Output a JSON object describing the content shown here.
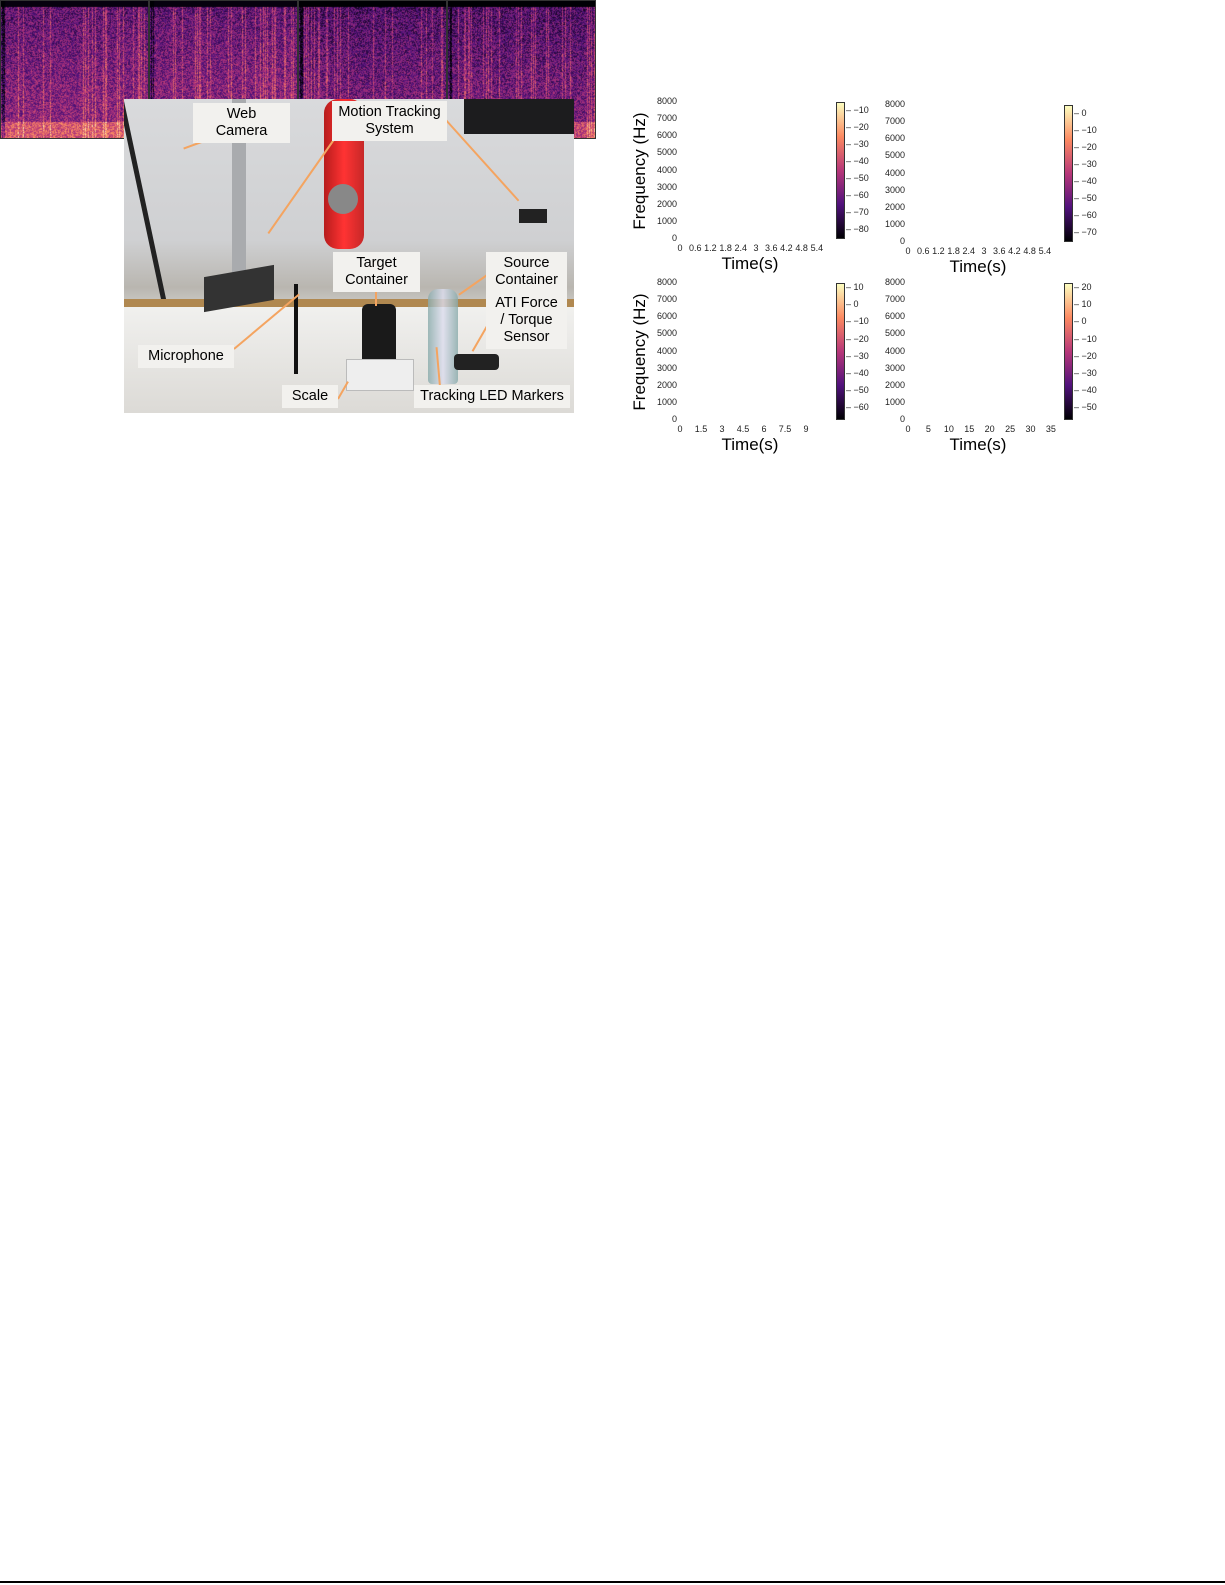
{
  "photo": {
    "labels": [
      {
        "id": "web-camera",
        "text": "Web Camera"
      },
      {
        "id": "motion-tracking",
        "text": "Motion Tracking System"
      },
      {
        "id": "target-container",
        "text": "Target Container"
      },
      {
        "id": "source-container",
        "text": "Source Container"
      },
      {
        "id": "ati-sensor",
        "text": "ATI Force / Torque Sensor"
      },
      {
        "id": "microphone",
        "text": "Microphone"
      },
      {
        "id": "scale",
        "text": "Scale"
      },
      {
        "id": "led-markers",
        "text": "Tracking LED Markers"
      }
    ],
    "arrow_color": "#f4a460"
  },
  "chart_data": [
    {
      "type": "heatmap",
      "colormap": "magma",
      "xlabel": "Time(s)",
      "ylabel": "Frequency (Hz)",
      "xticks": [
        "0",
        "0.6",
        "1.2",
        "1.8",
        "2.4",
        "3",
        "3.6",
        "4.2",
        "4.8",
        "5.4"
      ],
      "xlim": [
        0,
        5.8
      ],
      "yticks": [
        "0",
        "1000",
        "2000",
        "3000",
        "4000",
        "5000",
        "6000",
        "7000",
        "8000"
      ],
      "ylim": [
        0,
        8000
      ],
      "colorbar_ticks": [
        "−10",
        "−20",
        "−30",
        "−40",
        "−50",
        "−60",
        "−70",
        "−80"
      ],
      "colorbar_range": [
        -85,
        -5
      ]
    },
    {
      "type": "heatmap",
      "colormap": "magma",
      "xlabel": "Time(s)",
      "ylabel": "",
      "xticks": [
        "0",
        "0.6",
        "1.2",
        "1.8",
        "2.4",
        "3",
        "3.6",
        "4.2",
        "4.8",
        "5.4"
      ],
      "xlim": [
        0,
        5.8
      ],
      "yticks": [
        "0",
        "1000",
        "2000",
        "3000",
        "4000",
        "5000",
        "6000",
        "7000",
        "8000"
      ],
      "ylim": [
        0,
        8000
      ],
      "colorbar_ticks": [
        "0",
        "−10",
        "−20",
        "−30",
        "−40",
        "−50",
        "−60",
        "−70"
      ],
      "colorbar_range": [
        -75,
        5
      ]
    },
    {
      "type": "heatmap",
      "colormap": "magma",
      "xlabel": "Time(s)",
      "ylabel": "Frequency (Hz)",
      "xticks": [
        "0",
        "1.5",
        "3",
        "4.5",
        "6",
        "7.5",
        "9"
      ],
      "xlim": [
        0,
        10.5
      ],
      "yticks": [
        "0",
        "1000",
        "2000",
        "3000",
        "4000",
        "5000",
        "6000",
        "7000",
        "8000"
      ],
      "ylim": [
        0,
        8000
      ],
      "colorbar_ticks": [
        "10",
        "0",
        "−10",
        "−20",
        "−30",
        "−40",
        "−50",
        "−60"
      ],
      "colorbar_range": [
        -67,
        13
      ]
    },
    {
      "type": "heatmap",
      "colormap": "magma",
      "xlabel": "Time(s)",
      "ylabel": "",
      "xticks": [
        "0",
        "5",
        "10",
        "15",
        "20",
        "25",
        "30",
        "35"
      ],
      "xlim": [
        0,
        36
      ],
      "yticks": [
        "0",
        "1000",
        "2000",
        "3000",
        "4000",
        "5000",
        "6000",
        "7000",
        "8000"
      ],
      "ylim": [
        0,
        8000
      ],
      "colorbar_ticks": [
        "20",
        "10",
        "0",
        "−10",
        "−20",
        "−30",
        "−40",
        "−50"
      ],
      "colorbar_range": [
        -57,
        23
      ]
    }
  ]
}
